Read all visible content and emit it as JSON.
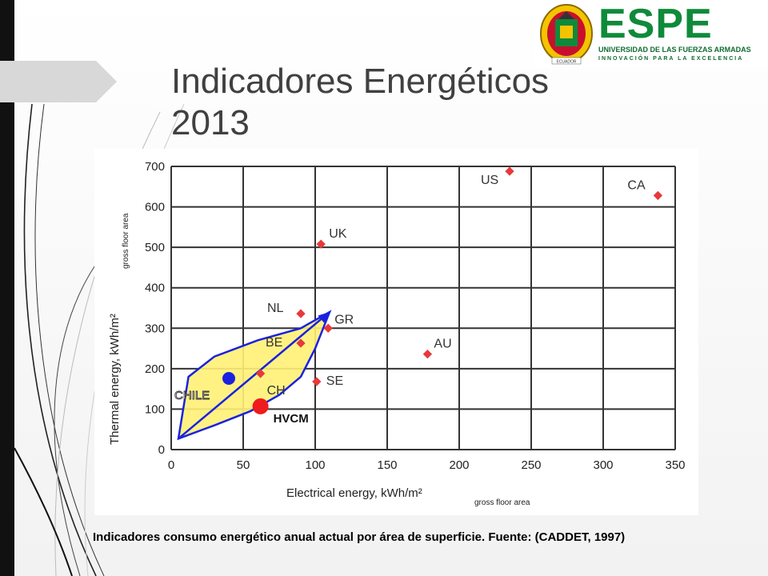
{
  "slide": {
    "title": "Indicadores Energéticos\n2013",
    "caption": "Indicadores consumo energético anual actual por área de superficie. Fuente: (CADDET, 1997)"
  },
  "logo": {
    "name": "ESPE",
    "subtitle": "UNIVERSIDAD DE LAS FUERZAS ARMADAS",
    "tagline": "INNOVACIÓN PARA LA EXCELENCIA",
    "seal_text": "ECUADOR",
    "brand_color": "#0f8a3b",
    "accent_color": "#c8102e"
  },
  "chart_data": {
    "type": "scatter",
    "xlabel": "Electrical energy, kWh/m²",
    "xlabel_sub": "gross floor area",
    "ylabel": "Thermal energy, kWh/m²",
    "ylabel_sub": "gross floor area",
    "xlim": [
      0,
      350
    ],
    "ylim": [
      0,
      700
    ],
    "x_ticks": [
      0,
      50,
      100,
      150,
      200,
      250,
      300,
      350
    ],
    "y_ticks": [
      0,
      100,
      200,
      300,
      400,
      500,
      600,
      700
    ],
    "grid": true,
    "points": [
      {
        "label": "US",
        "x": 235,
        "y": 688
      },
      {
        "label": "CA",
        "x": 338,
        "y": 628
      },
      {
        "label": "UK",
        "x": 104,
        "y": 508
      },
      {
        "label": "NL",
        "x": 90,
        "y": 336
      },
      {
        "label": "GR",
        "x": 109,
        "y": 300
      },
      {
        "label": "BE",
        "x": 90,
        "y": 263
      },
      {
        "label": "AU",
        "x": 178,
        "y": 236
      },
      {
        "label": "CH",
        "x": 62,
        "y": 188
      },
      {
        "label": "SE",
        "x": 101,
        "y": 168
      }
    ],
    "highlights": [
      {
        "label": "CHILE",
        "x": 40,
        "y": 176,
        "color": "#1a22e0"
      },
      {
        "label": "HVCM",
        "x": 62,
        "y": 107,
        "color": "#ee1c1c"
      }
    ],
    "region_outline": [
      [
        5,
        27
      ],
      [
        12,
        180
      ],
      [
        30,
        230
      ],
      [
        60,
        270
      ],
      [
        90,
        300
      ],
      [
        110,
        340
      ],
      [
        100,
        250
      ],
      [
        90,
        180
      ],
      [
        75,
        135
      ],
      [
        55,
        95
      ],
      [
        30,
        60
      ],
      [
        5,
        27
      ]
    ],
    "trend_arrow": {
      "from": [
        5,
        27
      ],
      "to": [
        110,
        340
      ]
    },
    "point_color": "#e8393a",
    "region_fill": "#fff176",
    "region_stroke": "#1a22e0"
  }
}
